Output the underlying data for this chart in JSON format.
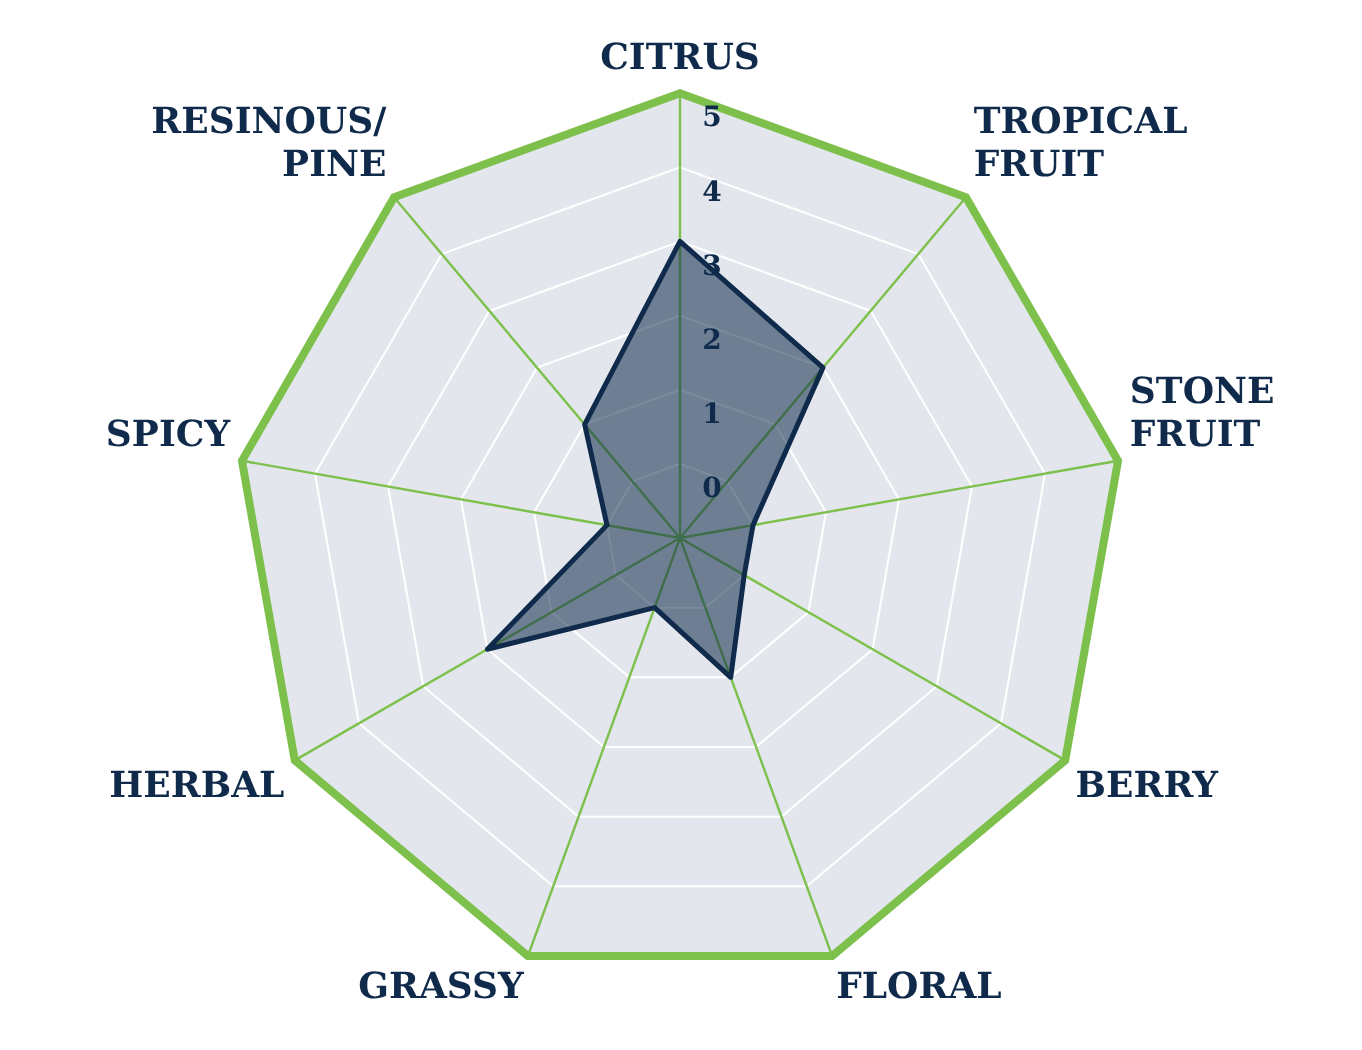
{
  "chart_data": {
    "type": "radar",
    "categories": [
      "CITRUS",
      "TROPICAL\nFRUIT",
      "STONE\nFRUIT",
      "BERRY",
      "FLORAL",
      "GRASSY",
      "HERBAL",
      "SPICY",
      "RESINOUS/\nPINE"
    ],
    "series": [
      {
        "color": "#0f2a4a",
        "values": [
          3,
          2,
          0,
          0,
          1,
          0,
          2,
          0,
          1
        ]
      }
    ],
    "ylim": [
      -1,
      5
    ],
    "yticks": [
      0,
      1,
      2,
      3,
      4,
      5
    ],
    "grid": true,
    "legend": false
  }
}
